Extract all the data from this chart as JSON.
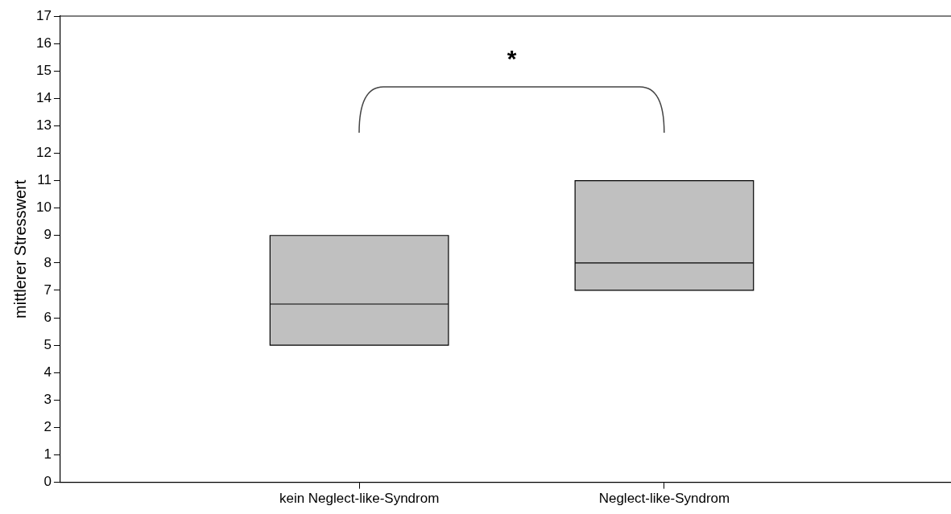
{
  "chart_data": {
    "type": "box",
    "ylabel": "mittlerer Stresswert",
    "categories": [
      "kein Neglect-like-Syndrom",
      "Neglect-like-Syndrom"
    ],
    "boxes": [
      {
        "low": 5,
        "q1": 5,
        "median": 6.5,
        "q3": 9,
        "high": 9
      },
      {
        "low": 7,
        "q1": 7,
        "median": 8,
        "q3": 11,
        "high": 11
      }
    ],
    "color": "#c0c0c0",
    "ylim": [
      0,
      17
    ],
    "yticks": [
      0,
      1,
      2,
      3,
      4,
      5,
      6,
      7,
      8,
      9,
      10,
      11,
      12,
      13,
      14,
      15,
      16,
      17
    ],
    "grid": false,
    "legend": false,
    "annotations": [
      "*"
    ]
  }
}
